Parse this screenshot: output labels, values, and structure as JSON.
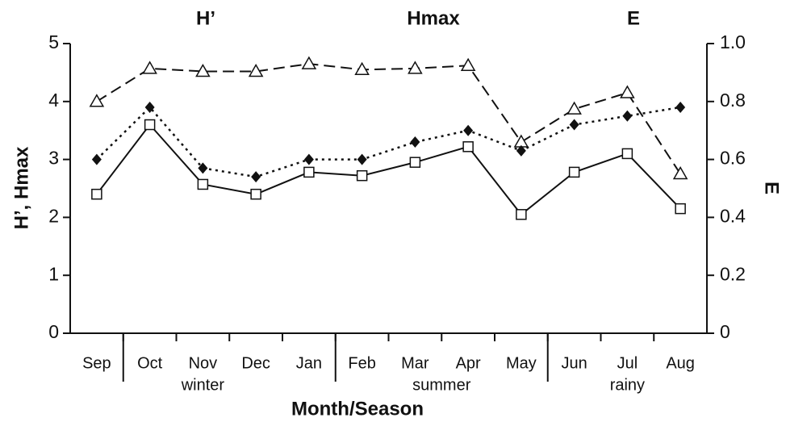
{
  "chart_data": {
    "type": "line",
    "categories": [
      "Sep",
      "Oct",
      "Nov",
      "Dec",
      "Jan",
      "Feb",
      "Mar",
      "Apr",
      "May",
      "Jun",
      "Jul",
      "Aug"
    ],
    "seasons": [
      "winter",
      "summer",
      "rainy"
    ],
    "ylabel": "H’, Hmax",
    "y2label": "E",
    "xlabel": "Month/Season",
    "ylim": [
      0,
      5
    ],
    "yticks": [
      0,
      1,
      2,
      3,
      4,
      5
    ],
    "y2lim": [
      0,
      1.0
    ],
    "y2ticks": [
      0,
      {
        "value": 0.2,
        "label": "0.2"
      },
      {
        "value": 0.4,
        "label": "0.4"
      },
      {
        "value": 0.6,
        "label": "0.6"
      },
      {
        "value": 0.8,
        "label": "0.8"
      },
      {
        "value": 1.0,
        "label": "1.0"
      }
    ],
    "series": [
      {
        "name": "H’",
        "color": "#111111",
        "dash": "solid",
        "marker": "square",
        "values": [
          2.4,
          3.6,
          2.57,
          2.4,
          2.78,
          2.72,
          2.95,
          3.22,
          2.05,
          2.78,
          3.1,
          2.15
        ]
      },
      {
        "name": "Hmax",
        "color": "#111111",
        "dash": "dashed",
        "marker": "triangle",
        "values": [
          4.0,
          4.57,
          4.52,
          4.52,
          4.65,
          4.55,
          4.57,
          4.62,
          3.3,
          3.87,
          4.15,
          2.75
        ]
      },
      {
        "name": "E",
        "color": "#111111",
        "dash": "dotted",
        "marker": "diamond",
        "axis": "y2",
        "values": [
          0.6,
          0.78,
          0.57,
          0.54,
          0.6,
          0.6,
          0.66,
          0.7,
          0.63,
          0.72,
          0.75,
          0.78
        ]
      }
    ]
  }
}
